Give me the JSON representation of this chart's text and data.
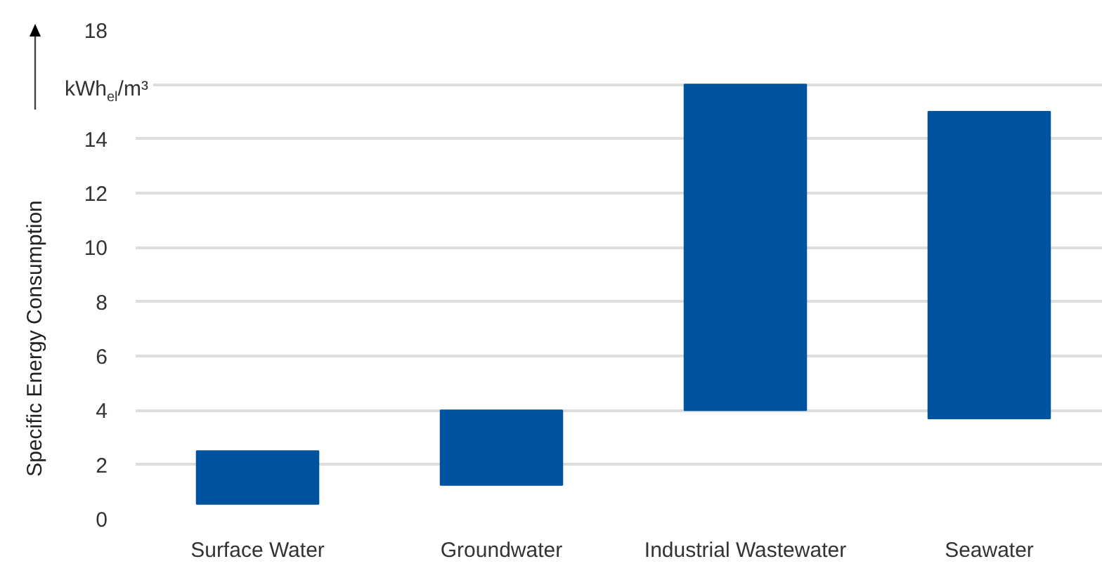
{
  "chart_data": {
    "type": "bar",
    "ylabel": "Specific Energy Consumption",
    "categories": [
      "Surface Water",
      "Groundwater",
      "Industrial Wastewater",
      "Seawater"
    ],
    "base": [
      0.55,
      1.25,
      4.0,
      3.7
    ],
    "values": [
      1.95,
      2.75,
      12.0,
      11.3
    ],
    "color": "#00539f",
    "ylim": [
      0,
      18
    ],
    "yticks": [
      0,
      2,
      4,
      6,
      8,
      10,
      12,
      14,
      {
        "value": 16,
        "label": null
      },
      18
    ],
    "annotations": [
      "kWh$_{el}$/m³"
    ],
    "grid": "y"
  }
}
